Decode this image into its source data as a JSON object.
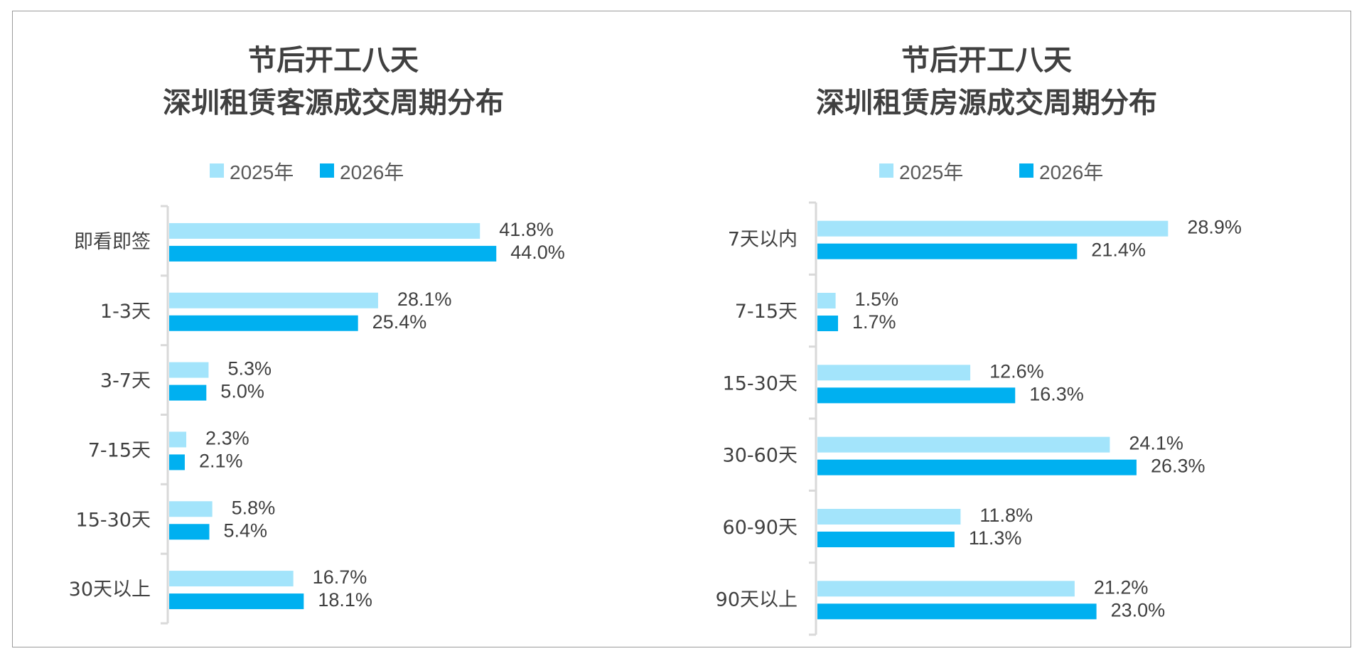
{
  "colors": {
    "2025": "#a3e4fb",
    "2026": "#00b0f0",
    "text": "#404040",
    "axis": "#d9d9d9"
  },
  "chart_data": [
    {
      "type": "bar",
      "orientation": "horizontal",
      "title": [
        "节后开工八天",
        "深圳租赁客源成交周期分布"
      ],
      "legend": "top",
      "categories": [
        "即看即签",
        "1-3天",
        "3-7天",
        "7-15天",
        "15-30天",
        "30天以上"
      ],
      "series": [
        {
          "name": "2025年",
          "values": [
            41.8,
            28.1,
            5.3,
            2.3,
            5.8,
            16.7
          ],
          "labels": [
            "41.8%",
            "28.1%",
            "5.3%",
            "2.3%",
            "5.8%",
            "16.7%"
          ]
        },
        {
          "name": "2026年",
          "values": [
            44.0,
            25.4,
            5.0,
            2.1,
            5.4,
            18.1
          ],
          "labels": [
            "44.0%",
            "25.4%",
            "5.0%",
            "2.1%",
            "5.4%",
            "18.1%"
          ]
        }
      ],
      "unit": "%",
      "grid": false
    },
    {
      "type": "bar",
      "orientation": "horizontal",
      "title": [
        "节后开工八天",
        "深圳租赁房源成交周期分布"
      ],
      "legend": "top",
      "categories": [
        "7天以内",
        "7-15天",
        "15-30天",
        "30-60天",
        "60-90天",
        "90天以上"
      ],
      "series": [
        {
          "name": "2025年",
          "values": [
            28.9,
            1.5,
            12.6,
            24.1,
            11.8,
            21.2
          ],
          "labels": [
            "28.9%",
            "1.5%",
            "12.6%",
            "24.1%",
            "11.8%",
            "21.2%"
          ]
        },
        {
          "name": "2026年",
          "values": [
            21.4,
            1.7,
            16.3,
            26.3,
            11.3,
            23.0
          ],
          "labels": [
            "21.4%",
            "1.7%",
            "16.3%",
            "26.3%",
            "11.3%",
            "23.0%"
          ]
        }
      ],
      "unit": "%",
      "grid": false
    }
  ]
}
